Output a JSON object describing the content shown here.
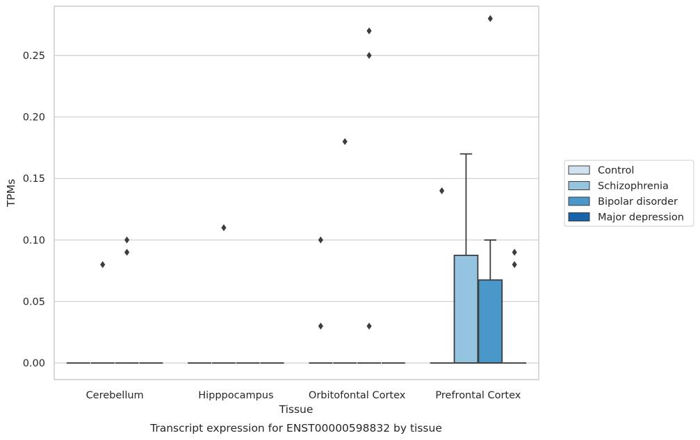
{
  "chart_data": {
    "type": "box",
    "title": "",
    "caption": "Transcript expression for ENST00000598832 by tissue",
    "xlabel": "Tissue",
    "ylabel": "TPMs",
    "ylim": [
      -0.0135,
      0.29
    ],
    "yticks": [
      0.0,
      0.05,
      0.1,
      0.15,
      0.2,
      0.25
    ],
    "ytick_labels": [
      "0.00",
      "0.05",
      "0.10",
      "0.15",
      "0.20",
      "0.25"
    ],
    "grid": "horizontal",
    "legend_position": "right",
    "categories": [
      "Cerebellum",
      "Hipppocampus",
      "Orbitofontal Cortex",
      "Prefrontal Cortex"
    ],
    "series": [
      {
        "name": "Control",
        "color": "#d0e1f2",
        "boxes": [
          {
            "q1": 0,
            "median": 0,
            "q3": 0,
            "whisker_low": 0,
            "whisker_high": 0,
            "outliers": []
          },
          {
            "q1": 0,
            "median": 0,
            "q3": 0,
            "whisker_low": 0,
            "whisker_high": 0,
            "outliers": []
          },
          {
            "q1": 0,
            "median": 0,
            "q3": 0,
            "whisker_low": 0,
            "whisker_high": 0,
            "outliers": [
              0.03,
              0.1
            ]
          },
          {
            "q1": 0,
            "median": 0,
            "q3": 0,
            "whisker_low": 0,
            "whisker_high": 0,
            "outliers": [
              0.14
            ]
          }
        ]
      },
      {
        "name": "Schizophrenia",
        "color": "#94c4df",
        "boxes": [
          {
            "q1": 0,
            "median": 0,
            "q3": 0,
            "whisker_low": 0,
            "whisker_high": 0,
            "outliers": [
              0.08
            ]
          },
          {
            "q1": 0,
            "median": 0,
            "q3": 0,
            "whisker_low": 0,
            "whisker_high": 0,
            "outliers": [
              0.11
            ]
          },
          {
            "q1": 0,
            "median": 0,
            "q3": 0,
            "whisker_low": 0,
            "whisker_high": 0,
            "outliers": [
              0.18
            ]
          },
          {
            "q1": 0,
            "median": 0,
            "q3": 0.0875,
            "whisker_low": 0,
            "whisker_high": 0.17,
            "outliers": []
          }
        ]
      },
      {
        "name": "Bipolar disorder",
        "color": "#4a98c9",
        "boxes": [
          {
            "q1": 0,
            "median": 0,
            "q3": 0,
            "whisker_low": 0,
            "whisker_high": 0,
            "outliers": [
              0.09,
              0.1
            ]
          },
          {
            "q1": 0,
            "median": 0,
            "q3": 0,
            "whisker_low": 0,
            "whisker_high": 0,
            "outliers": []
          },
          {
            "q1": 0,
            "median": 0,
            "q3": 0,
            "whisker_low": 0,
            "whisker_high": 0,
            "outliers": [
              0.03,
              0.25,
              0.27
            ]
          },
          {
            "q1": 0,
            "median": 0,
            "q3": 0.0675,
            "whisker_low": 0,
            "whisker_high": 0.1,
            "outliers": [
              0.28
            ]
          }
        ]
      },
      {
        "name": "Major depression",
        "color": "#1764ab",
        "boxes": [
          {
            "q1": 0,
            "median": 0,
            "q3": 0,
            "whisker_low": 0,
            "whisker_high": 0,
            "outliers": []
          },
          {
            "q1": 0,
            "median": 0,
            "q3": 0,
            "whisker_low": 0,
            "whisker_high": 0,
            "outliers": []
          },
          {
            "q1": 0,
            "median": 0,
            "q3": 0,
            "whisker_low": 0,
            "whisker_high": 0,
            "outliers": []
          },
          {
            "q1": 0,
            "median": 0,
            "q3": 0,
            "whisker_low": 0,
            "whisker_high": 0,
            "outliers": [
              0.08,
              0.09
            ]
          }
        ]
      }
    ]
  }
}
